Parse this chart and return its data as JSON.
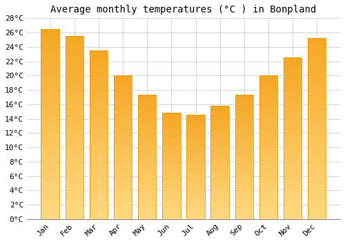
{
  "title": "Average monthly temperatures (°C ) in Bonpland",
  "months": [
    "Jan",
    "Feb",
    "Mar",
    "Apr",
    "May",
    "Jun",
    "Jul",
    "Aug",
    "Sep",
    "Oct",
    "Nov",
    "Dec"
  ],
  "values": [
    26.5,
    25.5,
    23.5,
    20.0,
    17.3,
    14.8,
    14.5,
    15.8,
    17.3,
    20.0,
    22.5,
    25.2
  ],
  "bar_color_top": "#F5A623",
  "bar_color_bottom": "#FFD980",
  "bar_edge_color": "#E8940A",
  "background_color": "#FFFFFF",
  "plot_bg_color": "#FFFFFF",
  "grid_color": "#CCCCCC",
  "ylim": [
    0,
    28
  ],
  "ytick_step": 2,
  "title_fontsize": 10,
  "tick_fontsize": 8,
  "font_family": "monospace"
}
